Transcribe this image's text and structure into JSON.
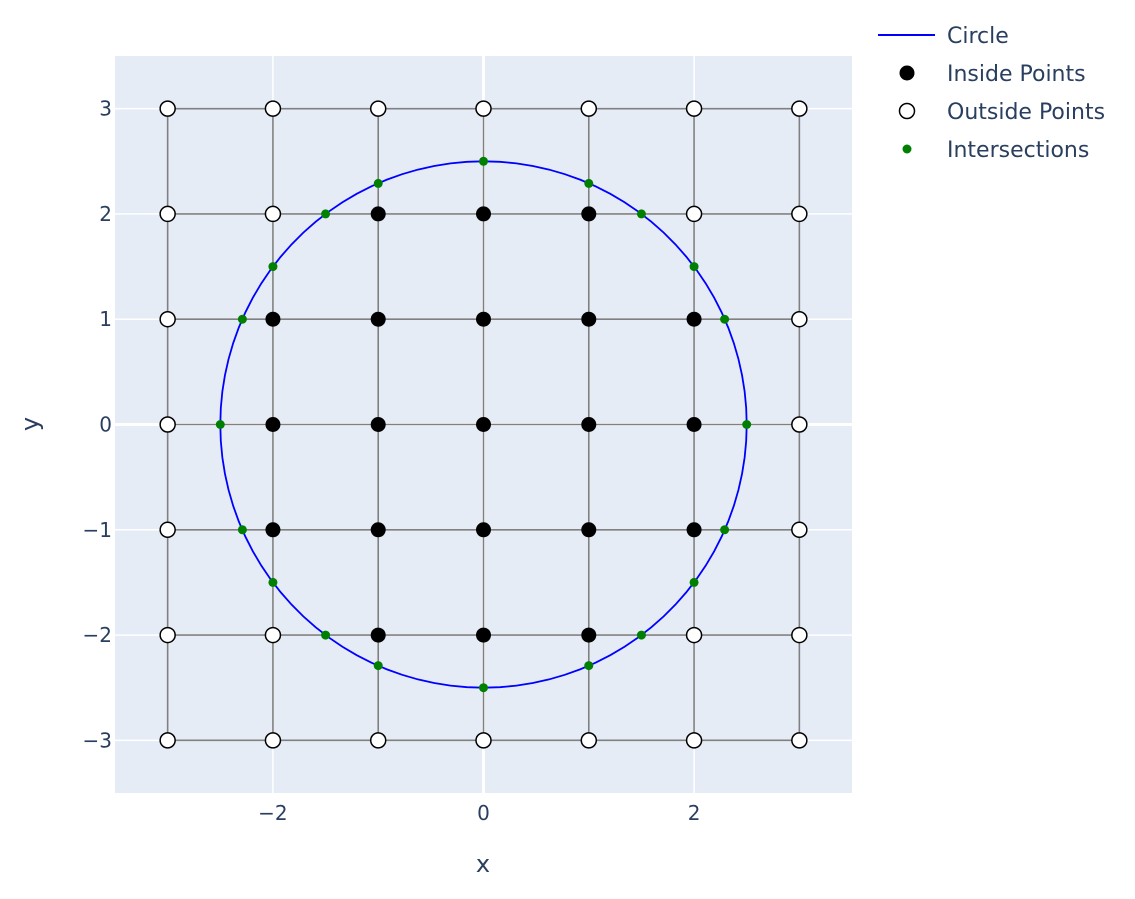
{
  "chart_data": {
    "type": "scatter",
    "title": "",
    "xlabel": "x",
    "ylabel": "y",
    "xlim": [
      -3.5,
      3.5
    ],
    "ylim": [
      -3.5,
      3.5
    ],
    "x_ticks": [
      -2,
      0,
      2
    ],
    "x_tick_labels": [
      "−2",
      "0",
      "2"
    ],
    "y_ticks": [
      3,
      2,
      1,
      0,
      -1,
      -2,
      -3
    ],
    "y_tick_labels": [
      "3",
      "2",
      "1",
      "0",
      "−1",
      "−2",
      "−3"
    ],
    "grid": true,
    "legend_position": "top-right outside",
    "plot_background": "#e5ecf6",
    "grid_lines_color": "#808080",
    "circle": {
      "radius": 2.5,
      "center": [
        0,
        0
      ]
    },
    "series": [
      {
        "name": "Circle",
        "mode": "lines",
        "color": "#0000ff"
      },
      {
        "name": "Inside Points",
        "mode": "markers",
        "marker": "filled-circle",
        "color": "#000000",
        "points": [
          [
            -1,
            2
          ],
          [
            0,
            2
          ],
          [
            1,
            2
          ],
          [
            -2,
            1
          ],
          [
            -1,
            1
          ],
          [
            0,
            1
          ],
          [
            1,
            1
          ],
          [
            2,
            1
          ],
          [
            -2,
            0
          ],
          [
            -1,
            0
          ],
          [
            0,
            0
          ],
          [
            1,
            0
          ],
          [
            2,
            0
          ],
          [
            -2,
            -1
          ],
          [
            -1,
            -1
          ],
          [
            0,
            -1
          ],
          [
            1,
            -1
          ],
          [
            2,
            -1
          ],
          [
            -1,
            -2
          ],
          [
            0,
            -2
          ],
          [
            1,
            -2
          ]
        ]
      },
      {
        "name": "Outside Points",
        "mode": "markers",
        "marker": "open-circle",
        "color": "#000000",
        "points": [
          [
            -3,
            3
          ],
          [
            -2,
            3
          ],
          [
            -1,
            3
          ],
          [
            0,
            3
          ],
          [
            1,
            3
          ],
          [
            2,
            3
          ],
          [
            3,
            3
          ],
          [
            -3,
            2
          ],
          [
            -2,
            2
          ],
          [
            2,
            2
          ],
          [
            3,
            2
          ],
          [
            -3,
            1
          ],
          [
            3,
            1
          ],
          [
            -3,
            0
          ],
          [
            3,
            0
          ],
          [
            -3,
            -1
          ],
          [
            3,
            -1
          ],
          [
            -3,
            -2
          ],
          [
            -2,
            -2
          ],
          [
            2,
            -2
          ],
          [
            3,
            -2
          ],
          [
            -3,
            -3
          ],
          [
            -2,
            -3
          ],
          [
            -1,
            -3
          ],
          [
            0,
            -3
          ],
          [
            1,
            -3
          ],
          [
            2,
            -3
          ],
          [
            3,
            -3
          ]
        ]
      },
      {
        "name": "Intersections",
        "mode": "markers",
        "marker": "small-filled-circle",
        "color": "#008000",
        "points": [
          [
            0,
            2.5
          ],
          [
            1,
            2.29
          ],
          [
            -1,
            2.29
          ],
          [
            1.5,
            2
          ],
          [
            -1.5,
            2
          ],
          [
            2,
            1.5
          ],
          [
            -2,
            1.5
          ],
          [
            2.29,
            1
          ],
          [
            -2.29,
            1
          ],
          [
            2.5,
            0
          ],
          [
            -2.5,
            0
          ],
          [
            2.29,
            -1
          ],
          [
            -2.29,
            -1
          ],
          [
            2,
            -1.5
          ],
          [
            -2,
            -1.5
          ],
          [
            1.5,
            -2
          ],
          [
            -1.5,
            -2
          ],
          [
            1,
            -2.29
          ],
          [
            -1,
            -2.29
          ],
          [
            0,
            -2.5
          ]
        ]
      }
    ]
  }
}
